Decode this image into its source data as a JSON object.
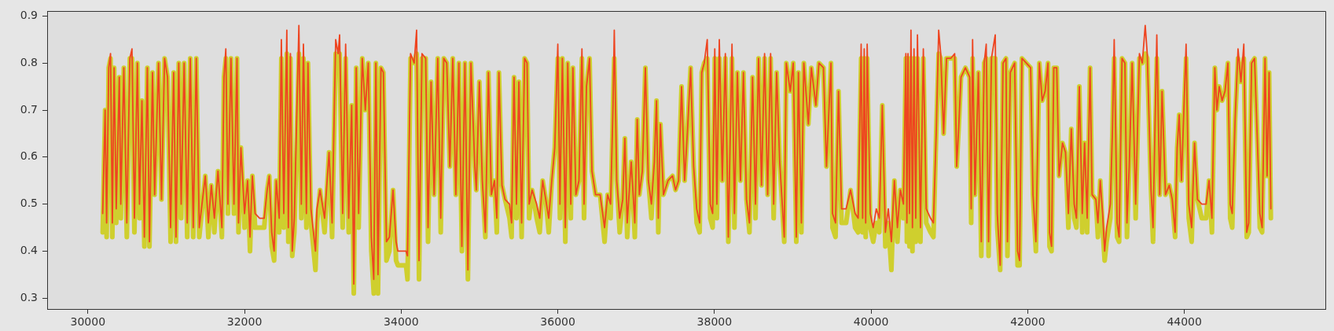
{
  "chart_data": {
    "type": "line",
    "marker": "none",
    "grid": false,
    "legend": false,
    "xlim": [
      29480,
      45800
    ],
    "ylim": [
      0.277,
      0.91
    ],
    "xticks": [
      30000,
      32000,
      34000,
      36000,
      38000,
      40000,
      42000,
      44000
    ],
    "yticks": [
      0.3,
      0.4,
      0.5,
      0.6,
      0.7,
      0.8,
      0.9
    ],
    "x": [
      30189,
      30220,
      30239,
      30266,
      30289,
      30312,
      30335,
      30362,
      30401,
      30420,
      30459,
      30497,
      30536,
      30563,
      30594,
      30632,
      30659,
      30690,
      30721,
      30759,
      30786,
      30825,
      30852,
      30902,
      30940,
      30979,
      31017,
      31056,
      31095,
      31125,
      31160,
      31191,
      31229,
      31268,
      31307,
      31345,
      31384,
      31422,
      31499,
      31538,
      31576,
      31615,
      31661,
      31711,
      31738,
      31761,
      31788,
      31827,
      31865,
      31904,
      31923,
      31954,
      32000,
      32039,
      32070,
      32100,
      32135,
      32193,
      32251,
      32289,
      32316,
      32347,
      32378,
      32405,
      32443,
      32470,
      32501,
      32540,
      32559,
      32586,
      32609,
      32636,
      32694,
      32725,
      32752,
      32790,
      32810,
      32848,
      32906,
      32925,
      32964,
      33022,
      33079,
      33118,
      33164,
      33195,
      33214,
      33253,
      33291,
      33330,
      33368,
      33395,
      33426,
      33457,
      33503,
      33542,
      33580,
      33619,
      33650,
      33677,
      33704,
      33742,
      33773,
      33812,
      33850,
      33896,
      33935,
      33958,
      34062,
      34081,
      34120,
      34166,
      34197,
      34228,
      34266,
      34313,
      34343,
      34382,
      34421,
      34467,
      34505,
      34544,
      34582,
      34621,
      34659,
      34698,
      34737,
      34775,
      34814,
      34852,
      34891,
      34940,
      34959,
      34998,
      35036,
      35075,
      35114,
      35152,
      35191,
      35221,
      35248,
      35287,
      35326,
      35383,
      35410,
      35441,
      35472,
      35503,
      35538,
      35576,
      35607,
      35634,
      35672,
      35730,
      35769,
      35807,
      35846,
      35884,
      35923,
      35961,
      36000,
      36027,
      36058,
      36096,
      36127,
      36166,
      36193,
      36231,
      36270,
      36308,
      36335,
      36366,
      36405,
      36436,
      36482,
      36540,
      36597,
      36636,
      36674,
      36705,
      36721,
      36752,
      36790,
      36829,
      36856,
      36886,
      36937,
      36983,
      37014,
      37041,
      37079,
      37118,
      37156,
      37195,
      37233,
      37260,
      37283,
      37310,
      37349,
      37407,
      37465,
      37503,
      37542,
      37580,
      37619,
      37657,
      37696,
      37734,
      37773,
      37811,
      37838,
      37869,
      37908,
      37946,
      37977,
      38004,
      38031,
      38062,
      38100,
      38139,
      38177,
      38224,
      38255,
      38293,
      38332,
      38370,
      38409,
      38447,
      38486,
      38524,
      38563,
      38601,
      38640,
      38679,
      38717,
      38756,
      38794,
      38833,
      38891,
      38917,
      38968,
      39006,
      39045,
      39072,
      39110,
      39141,
      39199,
      39237,
      39295,
      39334,
      39392,
      39430,
      39488,
      39507,
      39546,
      39584,
      39623,
      39681,
      39738,
      39796,
      39835,
      39873,
      39892,
      39912,
      39931,
      39950,
      39989,
      40027,
      40066,
      40105,
      40143,
      40182,
      40220,
      40259,
      40297,
      40336,
      40374,
      40413,
      40444,
      40457,
      40471,
      40490,
      40509,
      40528,
      40548,
      40570,
      40592,
      40630,
      40667,
      40704,
      40759,
      40796,
      40833,
      40863,
      40889,
      40926,
      40963,
      41018,
      41067,
      41093,
      41118,
      41148,
      41204,
      41259,
      41278,
      41296,
      41326,
      41370,
      41407,
      41444,
      41470,
      41500,
      41537,
      41585,
      41611,
      41648,
      41685,
      41722,
      41741,
      41778,
      41833,
      41870,
      41896,
      41926,
      41981,
      42037,
      42067,
      42104,
      42148,
      42185,
      42222,
      42259,
      42278,
      42304,
      42333,
      42370,
      42400,
      42444,
      42482,
      42519,
      42556,
      42593,
      42622,
      42659,
      42696,
      42726,
      42759,
      42796,
      42822,
      42870,
      42896,
      42926,
      42956,
      42982,
      43007,
      43055,
      43082,
      43104,
      43141,
      43167,
      43204,
      43241,
      43267,
      43296,
      43333,
      43378,
      43426,
      43463,
      43500,
      43526,
      43574,
      43600,
      43648,
      43685,
      43715,
      43759,
      43807,
      43845,
      43882,
      43908,
      43934,
      43963,
      44022,
      44056,
      44093,
      44130,
      44167,
      44222,
      44278,
      44315,
      44352,
      44389,
      44415,
      44445,
      44482,
      44519,
      44556,
      44585,
      44611,
      44648,
      44685,
      44722,
      44759,
      44796,
      44822,
      44859,
      44896,
      44933,
      44963,
      44993,
      45030,
      45056,
      45082,
      45104
    ],
    "series": [
      {
        "color": "#cfcf2e",
        "values": [
          0.44,
          0.7,
          0.43,
          0.79,
          0.81,
          0.43,
          0.79,
          0.46,
          0.77,
          0.47,
          0.79,
          0.43,
          0.81,
          0.81,
          0.44,
          0.8,
          0.47,
          0.72,
          0.41,
          0.79,
          0.41,
          0.78,
          0.52,
          0.8,
          0.51,
          0.81,
          0.77,
          0.42,
          0.78,
          0.42,
          0.8,
          0.47,
          0.8,
          0.43,
          0.81,
          0.43,
          0.81,
          0.43,
          0.56,
          0.43,
          0.54,
          0.44,
          0.57,
          0.43,
          0.77,
          0.81,
          0.48,
          0.81,
          0.48,
          0.81,
          0.44,
          0.62,
          0.45,
          0.55,
          0.4,
          0.56,
          0.45,
          0.45,
          0.45,
          0.53,
          0.56,
          0.41,
          0.38,
          0.55,
          0.44,
          0.81,
          0.45,
          0.82,
          0.42,
          0.81,
          0.39,
          0.44,
          0.82,
          0.47,
          0.81,
          0.45,
          0.8,
          0.46,
          0.36,
          0.46,
          0.53,
          0.44,
          0.61,
          0.43,
          0.82,
          0.81,
          0.82,
          0.45,
          0.81,
          0.44,
          0.71,
          0.31,
          0.79,
          0.45,
          0.81,
          0.7,
          0.8,
          0.4,
          0.31,
          0.8,
          0.31,
          0.79,
          0.78,
          0.38,
          0.4,
          0.53,
          0.38,
          0.37,
          0.37,
          0.34,
          0.81,
          0.8,
          0.82,
          0.34,
          0.81,
          0.81,
          0.42,
          0.76,
          0.52,
          0.81,
          0.44,
          0.81,
          0.8,
          0.58,
          0.81,
          0.52,
          0.8,
          0.4,
          0.8,
          0.34,
          0.8,
          0.58,
          0.53,
          0.76,
          0.55,
          0.43,
          0.78,
          0.52,
          0.55,
          0.44,
          0.78,
          0.54,
          0.51,
          0.47,
          0.43,
          0.77,
          0.47,
          0.76,
          0.43,
          0.81,
          0.8,
          0.47,
          0.53,
          0.47,
          0.44,
          0.55,
          0.51,
          0.44,
          0.55,
          0.62,
          0.81,
          0.47,
          0.81,
          0.42,
          0.8,
          0.47,
          0.79,
          0.52,
          0.55,
          0.81,
          0.47,
          0.75,
          0.81,
          0.57,
          0.52,
          0.52,
          0.42,
          0.52,
          0.47,
          0.71,
          0.81,
          0.55,
          0.44,
          0.51,
          0.64,
          0.43,
          0.59,
          0.43,
          0.68,
          0.52,
          0.57,
          0.79,
          0.55,
          0.47,
          0.59,
          0.72,
          0.44,
          0.67,
          0.52,
          0.55,
          0.56,
          0.53,
          0.55,
          0.75,
          0.55,
          0.66,
          0.79,
          0.58,
          0.46,
          0.44,
          0.78,
          0.8,
          0.81,
          0.47,
          0.45,
          0.81,
          0.47,
          0.81,
          0.55,
          0.81,
          0.42,
          0.81,
          0.45,
          0.78,
          0.55,
          0.78,
          0.51,
          0.44,
          0.77,
          0.47,
          0.81,
          0.54,
          0.81,
          0.52,
          0.81,
          0.47,
          0.78,
          0.59,
          0.42,
          0.8,
          0.74,
          0.8,
          0.42,
          0.78,
          0.44,
          0.8,
          0.67,
          0.79,
          0.71,
          0.8,
          0.79,
          0.58,
          0.8,
          0.45,
          0.43,
          0.74,
          0.46,
          0.46,
          0.53,
          0.45,
          0.44,
          0.81,
          0.44,
          0.81,
          0.43,
          0.81,
          0.45,
          0.42,
          0.46,
          0.44,
          0.71,
          0.41,
          0.46,
          0.36,
          0.55,
          0.42,
          0.53,
          0.47,
          0.81,
          0.42,
          0.81,
          0.41,
          0.81,
          0.4,
          0.81,
          0.42,
          0.81,
          0.42,
          0.81,
          0.46,
          0.44,
          0.43,
          0.66,
          0.82,
          0.81,
          0.65,
          0.81,
          0.81,
          0.81,
          0.58,
          0.66,
          0.77,
          0.79,
          0.77,
          0.46,
          0.81,
          0.52,
          0.78,
          0.39,
          0.8,
          0.81,
          0.39,
          0.81,
          0.81,
          0.45,
          0.36,
          0.8,
          0.81,
          0.39,
          0.78,
          0.8,
          0.37,
          0.37,
          0.81,
          0.8,
          0.79,
          0.52,
          0.4,
          0.8,
          0.72,
          0.74,
          0.8,
          0.41,
          0.4,
          0.79,
          0.79,
          0.56,
          0.63,
          0.61,
          0.45,
          0.66,
          0.47,
          0.45,
          0.75,
          0.44,
          0.63,
          0.44,
          0.79,
          0.52,
          0.51,
          0.43,
          0.55,
          0.45,
          0.38,
          0.42,
          0.47,
          0.66,
          0.81,
          0.43,
          0.42,
          0.81,
          0.8,
          0.43,
          0.58,
          0.8,
          0.47,
          0.81,
          0.8,
          0.82,
          0.81,
          0.53,
          0.42,
          0.81,
          0.52,
          0.74,
          0.52,
          0.54,
          0.51,
          0.43,
          0.62,
          0.69,
          0.55,
          0.81,
          0.47,
          0.42,
          0.63,
          0.51,
          0.47,
          0.47,
          0.55,
          0.44,
          0.79,
          0.7,
          0.75,
          0.72,
          0.74,
          0.8,
          0.47,
          0.45,
          0.68,
          0.81,
          0.76,
          0.81,
          0.43,
          0.44,
          0.8,
          0.81,
          0.63,
          0.45,
          0.44,
          0.81,
          0.56,
          0.78,
          0.47
        ]
      },
      {
        "color": "#ee4420",
        "values": [
          0.48,
          0.7,
          0.46,
          0.79,
          0.82,
          0.46,
          0.79,
          0.49,
          0.77,
          0.5,
          0.79,
          0.46,
          0.81,
          0.83,
          0.47,
          0.8,
          0.5,
          0.72,
          0.43,
          0.79,
          0.42,
          0.78,
          0.52,
          0.8,
          0.51,
          0.81,
          0.77,
          0.45,
          0.78,
          0.43,
          0.8,
          0.5,
          0.8,
          0.46,
          0.81,
          0.45,
          0.81,
          0.45,
          0.56,
          0.46,
          0.54,
          0.47,
          0.57,
          0.45,
          0.77,
          0.83,
          0.5,
          0.81,
          0.5,
          0.81,
          0.46,
          0.62,
          0.48,
          0.55,
          0.43,
          0.56,
          0.48,
          0.47,
          0.47,
          0.53,
          0.56,
          0.44,
          0.4,
          0.55,
          0.47,
          0.85,
          0.48,
          0.87,
          0.45,
          0.82,
          0.4,
          0.47,
          0.88,
          0.5,
          0.84,
          0.48,
          0.8,
          0.49,
          0.4,
          0.49,
          0.53,
          0.47,
          0.61,
          0.46,
          0.85,
          0.82,
          0.86,
          0.48,
          0.84,
          0.47,
          0.71,
          0.33,
          0.79,
          0.48,
          0.81,
          0.7,
          0.8,
          0.43,
          0.34,
          0.8,
          0.35,
          0.79,
          0.78,
          0.42,
          0.43,
          0.53,
          0.42,
          0.4,
          0.4,
          0.39,
          0.82,
          0.8,
          0.87,
          0.38,
          0.82,
          0.81,
          0.45,
          0.76,
          0.52,
          0.81,
          0.47,
          0.81,
          0.8,
          0.58,
          0.81,
          0.52,
          0.8,
          0.41,
          0.8,
          0.36,
          0.8,
          0.58,
          0.53,
          0.76,
          0.55,
          0.44,
          0.78,
          0.52,
          0.55,
          0.47,
          0.78,
          0.54,
          0.51,
          0.5,
          0.46,
          0.77,
          0.5,
          0.76,
          0.46,
          0.81,
          0.8,
          0.5,
          0.53,
          0.5,
          0.47,
          0.55,
          0.51,
          0.47,
          0.55,
          0.62,
          0.84,
          0.5,
          0.81,
          0.45,
          0.8,
          0.5,
          0.79,
          0.52,
          0.55,
          0.83,
          0.5,
          0.75,
          0.81,
          0.57,
          0.52,
          0.52,
          0.45,
          0.52,
          0.5,
          0.71,
          0.87,
          0.55,
          0.47,
          0.51,
          0.64,
          0.46,
          0.59,
          0.46,
          0.68,
          0.52,
          0.57,
          0.79,
          0.55,
          0.5,
          0.59,
          0.72,
          0.47,
          0.67,
          0.52,
          0.55,
          0.56,
          0.53,
          0.55,
          0.75,
          0.55,
          0.66,
          0.79,
          0.58,
          0.49,
          0.46,
          0.78,
          0.8,
          0.85,
          0.5,
          0.48,
          0.83,
          0.5,
          0.85,
          0.55,
          0.82,
          0.43,
          0.84,
          0.48,
          0.78,
          0.55,
          0.78,
          0.51,
          0.46,
          0.77,
          0.5,
          0.81,
          0.54,
          0.82,
          0.52,
          0.82,
          0.5,
          0.78,
          0.59,
          0.43,
          0.8,
          0.74,
          0.8,
          0.43,
          0.78,
          0.46,
          0.8,
          0.67,
          0.79,
          0.71,
          0.8,
          0.79,
          0.58,
          0.8,
          0.48,
          0.46,
          0.74,
          0.49,
          0.49,
          0.53,
          0.48,
          0.47,
          0.84,
          0.47,
          0.83,
          0.46,
          0.84,
          0.48,
          0.45,
          0.49,
          0.47,
          0.71,
          0.44,
          0.49,
          0.42,
          0.55,
          0.45,
          0.53,
          0.5,
          0.82,
          0.46,
          0.82,
          0.48,
          0.87,
          0.45,
          0.83,
          0.47,
          0.86,
          0.45,
          0.83,
          0.49,
          0.47,
          0.46,
          0.66,
          0.87,
          0.82,
          0.65,
          0.81,
          0.81,
          0.82,
          0.58,
          0.66,
          0.77,
          0.79,
          0.77,
          0.49,
          0.85,
          0.52,
          0.78,
          0.42,
          0.8,
          0.84,
          0.42,
          0.81,
          0.86,
          0.48,
          0.37,
          0.8,
          0.81,
          0.42,
          0.78,
          0.8,
          0.4,
          0.38,
          0.81,
          0.8,
          0.79,
          0.52,
          0.42,
          0.8,
          0.72,
          0.74,
          0.8,
          0.44,
          0.41,
          0.79,
          0.79,
          0.56,
          0.63,
          0.61,
          0.48,
          0.66,
          0.5,
          0.47,
          0.75,
          0.48,
          0.63,
          0.47,
          0.79,
          0.52,
          0.51,
          0.46,
          0.55,
          0.48,
          0.4,
          0.45,
          0.5,
          0.66,
          0.85,
          0.46,
          0.43,
          0.81,
          0.8,
          0.46,
          0.58,
          0.8,
          0.5,
          0.82,
          0.8,
          0.88,
          0.82,
          0.53,
          0.45,
          0.86,
          0.52,
          0.74,
          0.52,
          0.54,
          0.51,
          0.44,
          0.62,
          0.69,
          0.55,
          0.84,
          0.5,
          0.45,
          0.63,
          0.51,
          0.5,
          0.5,
          0.55,
          0.47,
          0.79,
          0.7,
          0.75,
          0.72,
          0.74,
          0.8,
          0.5,
          0.48,
          0.68,
          0.83,
          0.76,
          0.84,
          0.44,
          0.46,
          0.8,
          0.81,
          0.63,
          0.48,
          0.45,
          0.81,
          0.56,
          0.78,
          0.49
        ]
      }
    ]
  }
}
